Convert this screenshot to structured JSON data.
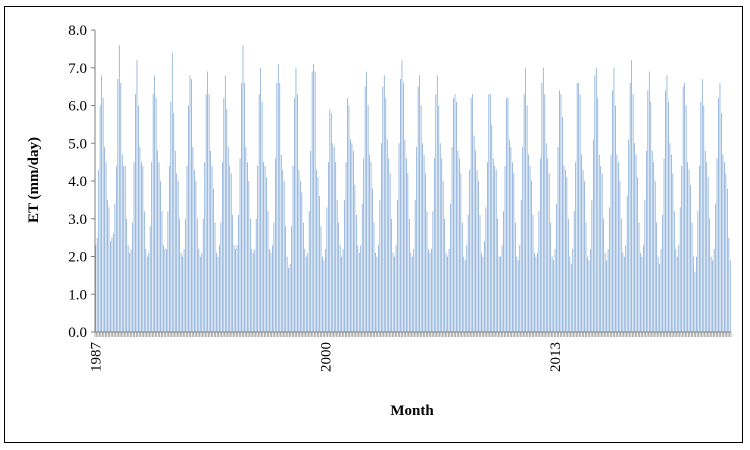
{
  "chart_data": {
    "type": "bar",
    "title": "",
    "xlabel": "Month",
    "ylabel": "ET (mm/day)",
    "ylim": [
      0,
      8
    ],
    "yticks": [
      "0.0",
      "1.0",
      "2.0",
      "3.0",
      "4.0",
      "5.0",
      "6.0",
      "7.0",
      "8.0"
    ],
    "xticks": [
      "1987",
      "2000",
      "2013"
    ],
    "grid": false,
    "legend": "none",
    "colors": {
      "bar": "#7ea6d6",
      "axis": "#7f7f7f",
      "border": "#000000"
    },
    "series": [
      {
        "values": [
          2.3,
          2.5,
          4.3,
          6.0,
          6.8,
          6.2,
          4.9,
          4.5,
          3.5,
          3.3,
          2.4,
          2.5,
          2.6,
          3.4,
          4.4,
          6.7,
          7.6,
          6.6,
          4.7,
          4.4,
          4.4,
          3.0,
          2.3,
          2.1,
          2.2,
          2.9,
          4.5,
          6.3,
          7.2,
          6.0,
          4.9,
          4.5,
          4.4,
          3.2,
          2.2,
          2.0,
          2.1,
          2.8,
          4.5,
          6.3,
          6.8,
          6.2,
          4.8,
          4.5,
          4.0,
          3.2,
          2.3,
          2.2,
          2.2,
          3.2,
          4.4,
          6.1,
          7.4,
          5.8,
          4.8,
          4.2,
          4.0,
          3.0,
          2.1,
          2.0,
          2.2,
          3.0,
          4.4,
          6.0,
          6.8,
          6.7,
          4.9,
          4.3,
          4.0,
          3.0,
          2.2,
          2.0,
          2.1,
          3.0,
          4.5,
          6.3,
          6.9,
          6.3,
          4.8,
          4.4,
          3.8,
          2.9,
          2.1,
          2.0,
          2.3,
          2.9,
          4.5,
          6.2,
          6.8,
          5.9,
          4.9,
          4.4,
          4.2,
          3.1,
          2.3,
          2.2,
          2.3,
          3.1,
          4.6,
          6.6,
          7.6,
          6.6,
          4.9,
          4.5,
          4.0,
          3.0,
          2.2,
          2.1,
          2.2,
          3.0,
          4.4,
          6.3,
          7.0,
          6.1,
          4.5,
          4.4,
          4.1,
          3.2,
          2.2,
          2.1,
          2.3,
          2.9,
          4.6,
          6.6,
          7.1,
          6.6,
          4.7,
          4.3,
          4.0,
          2.8,
          2.0,
          1.7,
          1.8,
          2.8,
          4.4,
          6.2,
          7.0,
          6.3,
          4.3,
          4.0,
          3.7,
          2.9,
          2.2,
          2.0,
          2.1,
          3.2,
          4.8,
          6.9,
          7.1,
          6.9,
          4.3,
          4.1,
          3.6,
          2.8,
          2.0,
          1.9,
          2.2,
          3.3,
          4.5,
          5.9,
          5.8,
          5.0,
          4.9,
          4.5,
          3.5,
          2.9,
          2.3,
          2.0,
          2.2,
          3.5,
          4.5,
          6.2,
          6.0,
          5.1,
          5.0,
          4.8,
          3.9,
          3.1,
          2.3,
          2.1,
          2.3,
          3.4,
          4.6,
          6.5,
          6.9,
          6.0,
          4.7,
          4.5,
          3.8,
          2.9,
          2.1,
          2.0,
          2.3,
          3.5,
          5.0,
          6.5,
          6.8,
          6.2,
          5.1,
          4.6,
          4.2,
          3.0,
          2.1,
          2.0,
          2.3,
          3.5,
          5.0,
          6.7,
          7.2,
          6.6,
          5.1,
          4.6,
          4.2,
          3.0,
          2.1,
          2.0,
          2.2,
          3.5,
          4.9,
          6.5,
          6.8,
          6.0,
          5.0,
          4.7,
          4.2,
          3.2,
          2.2,
          2.1,
          2.2,
          3.2,
          4.6,
          6.3,
          6.8,
          6.0,
          5.0,
          4.6,
          4.0,
          3.0,
          2.1,
          2.0,
          2.2,
          3.4,
          4.9,
          6.2,
          6.3,
          6.1,
          4.8,
          4.6,
          4.2,
          2.9,
          2.0,
          1.9,
          2.3,
          3.1,
          4.3,
          6.2,
          6.3,
          5.2,
          4.8,
          4.3,
          4.0,
          3.1,
          2.1,
          2.0,
          2.4,
          3.3,
          4.5,
          6.3,
          6.3,
          5.5,
          4.6,
          4.4,
          4.3,
          3.0,
          2.0,
          2.0,
          2.3,
          3.2,
          4.4,
          6.2,
          6.2,
          5.1,
          4.9,
          4.5,
          4.2,
          2.9,
          2.0,
          1.9,
          2.3,
          3.5,
          4.9,
          6.3,
          7.0,
          6.0,
          4.7,
          4.4,
          4.0,
          3.1,
          2.1,
          2.0,
          2.1,
          3.2,
          4.6,
          6.6,
          7.0,
          6.3,
          5.0,
          4.6,
          4.2,
          2.9,
          2.0,
          1.9,
          2.2,
          3.4,
          4.9,
          6.4,
          6.3,
          5.7,
          4.4,
          4.3,
          4.1,
          3.0,
          2.0,
          1.8,
          2.2,
          3.2,
          4.5,
          6.6,
          6.6,
          6.3,
          4.7,
          4.3,
          4.0,
          2.9,
          2.0,
          1.9,
          2.2,
          3.5,
          5.1,
          6.8,
          7.0,
          6.2,
          4.7,
          4.4,
          4.2,
          3.0,
          2.1,
          1.9,
          2.2,
          3.3,
          4.7,
          6.4,
          7.0,
          6.0,
          4.7,
          4.5,
          4.0,
          3.0,
          2.1,
          2.0,
          2.3,
          3.6,
          5.1,
          6.6,
          7.2,
          6.3,
          5.0,
          4.7,
          4.1,
          2.9,
          2.1,
          2.0,
          2.3,
          3.5,
          4.8,
          6.4,
          6.9,
          6.1,
          4.8,
          4.5,
          4.0,
          2.9,
          2.0,
          1.8,
          2.2,
          3.1,
          4.6,
          6.4,
          6.8,
          6.1,
          5.0,
          4.7,
          4.2,
          3.2,
          2.2,
          2.0,
          2.3,
          3.3,
          4.4,
          6.5,
          6.6,
          6.0,
          4.5,
          4.3,
          3.9,
          2.9,
          2.0,
          1.6,
          2.0,
          3.2,
          4.4,
          6.1,
          6.7,
          6.0,
          4.8,
          4.5,
          4.1,
          3.0,
          2.0,
          1.9,
          2.2,
          3.4,
          4.6,
          6.2,
          6.6,
          5.8,
          4.7,
          4.5,
          4.2,
          3.8,
          2.5,
          1.9
        ]
      }
    ]
  }
}
